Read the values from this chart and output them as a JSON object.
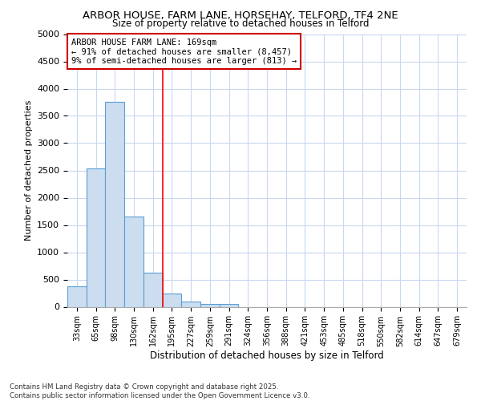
{
  "title1": "ARBOR HOUSE, FARM LANE, HORSEHAY, TELFORD, TF4 2NE",
  "title2": "Size of property relative to detached houses in Telford",
  "xlabel": "Distribution of detached houses by size in Telford",
  "ylabel": "Number of detached properties",
  "bin_labels": [
    "33sqm",
    "65sqm",
    "98sqm",
    "130sqm",
    "162sqm",
    "195sqm",
    "227sqm",
    "259sqm",
    "291sqm",
    "324sqm",
    "356sqm",
    "388sqm",
    "421sqm",
    "453sqm",
    "485sqm",
    "518sqm",
    "550sqm",
    "582sqm",
    "614sqm",
    "647sqm",
    "679sqm"
  ],
  "bar_heights": [
    370,
    2530,
    3750,
    1650,
    620,
    240,
    100,
    50,
    50,
    0,
    0,
    0,
    0,
    0,
    0,
    0,
    0,
    0,
    0,
    0,
    0
  ],
  "bar_color": "#ccddf0",
  "bar_edge_color": "#5a9fd4",
  "vline_x_index": 4,
  "vline_color": "red",
  "annotation_text": "ARBOR HOUSE FARM LANE: 169sqm\n← 91% of detached houses are smaller (8,457)\n9% of semi-detached houses are larger (813) →",
  "annotation_box_color": "white",
  "annotation_box_edge": "#cc0000",
  "ylim": [
    0,
    5000
  ],
  "yticks": [
    0,
    500,
    1000,
    1500,
    2000,
    2500,
    3000,
    3500,
    4000,
    4500,
    5000
  ],
  "bg_color": "#ffffff",
  "grid_color": "#c8d8ee",
  "footer1": "Contains HM Land Registry data © Crown copyright and database right 2025.",
  "footer2": "Contains public sector information licensed under the Open Government Licence v3.0."
}
